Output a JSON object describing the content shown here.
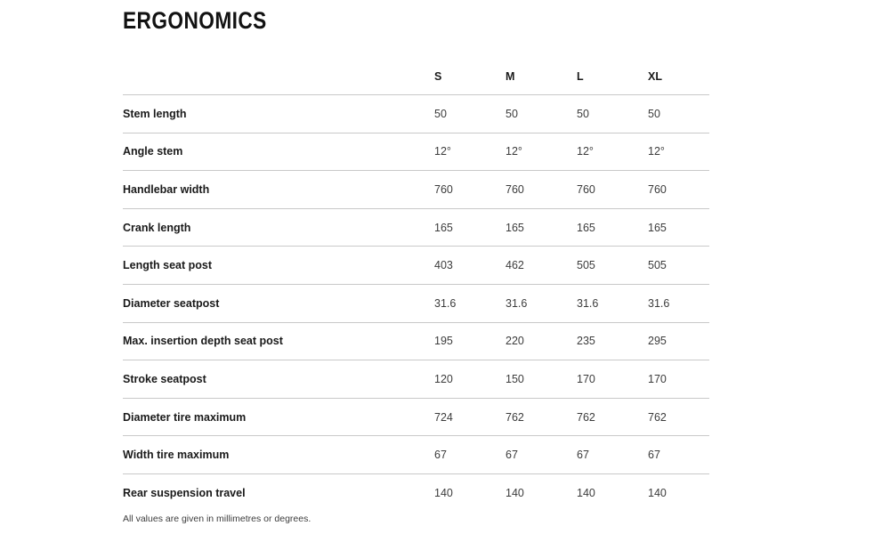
{
  "page": {
    "title": "ERGONOMICS",
    "footnote": "All values are given in millimetres or degrees."
  },
  "table": {
    "label_column": "",
    "columns": [
      "S",
      "M",
      "L",
      "XL"
    ],
    "rows": [
      {
        "label": "Stem length",
        "values": [
          "50",
          "50",
          "50",
          "50"
        ]
      },
      {
        "label": "Angle stem",
        "values": [
          "12°",
          "12°",
          "12°",
          "12°"
        ]
      },
      {
        "label": "Handlebar width",
        "values": [
          "760",
          "760",
          "760",
          "760"
        ]
      },
      {
        "label": "Crank length",
        "values": [
          "165",
          "165",
          "165",
          "165"
        ]
      },
      {
        "label": "Length seat post",
        "values": [
          "403",
          "462",
          "505",
          "505"
        ]
      },
      {
        "label": "Diameter seatpost",
        "values": [
          "31.6",
          "31.6",
          "31.6",
          "31.6"
        ]
      },
      {
        "label": "Max. insertion depth seat post",
        "values": [
          "195",
          "220",
          "235",
          "295"
        ]
      },
      {
        "label": "Stroke seatpost",
        "values": [
          "120",
          "150",
          "170",
          "170"
        ]
      },
      {
        "label": "Diameter tire maximum",
        "values": [
          "724",
          "762",
          "762",
          "762"
        ]
      },
      {
        "label": "Width tire maximum",
        "values": [
          "67",
          "67",
          "67",
          "67"
        ]
      },
      {
        "label": "Rear suspension travel",
        "values": [
          "140",
          "140",
          "140",
          "140"
        ]
      }
    ]
  },
  "colors": {
    "text_primary": "#1a1a1a",
    "text_secondary": "#3c3c3c",
    "divider": "#c9c9c9",
    "background": "#ffffff"
  }
}
